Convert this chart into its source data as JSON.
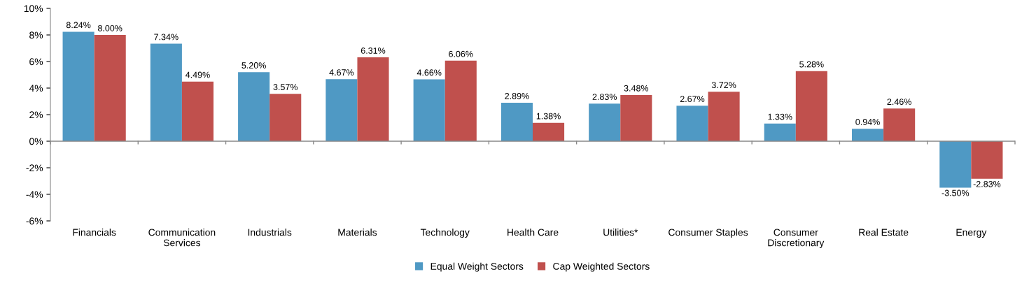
{
  "chart_data": {
    "type": "bar",
    "categories": [
      "Financials",
      "Communication Services",
      "Industrials",
      "Materials",
      "Technology",
      "Health Care",
      "Utilities*",
      "Consumer Staples",
      "Consumer Discretionary",
      "Real Estate",
      "Energy"
    ],
    "series": [
      {
        "name": "Equal Weight Sectors",
        "color": "#4f99c4",
        "values": [
          8.24,
          7.34,
          5.2,
          4.67,
          4.66,
          2.89,
          2.83,
          2.67,
          1.33,
          0.94,
          -3.5
        ],
        "value_labels": [
          "8.24%",
          "7.34%",
          "5.20%",
          "4.67%",
          "4.66%",
          "2.89%",
          "2.83%",
          "2.67%",
          "1.33%",
          "0.94%",
          "-3.50%"
        ]
      },
      {
        "name": "Cap Weighted Sectors",
        "color": "#c0504d",
        "values": [
          8.0,
          4.49,
          3.57,
          6.31,
          6.06,
          1.38,
          3.48,
          3.72,
          5.28,
          2.46,
          -2.83
        ],
        "value_labels": [
          "8.00%",
          "4.49%",
          "3.57%",
          "6.31%",
          "6.06%",
          "1.38%",
          "3.48%",
          "3.72%",
          "5.28%",
          "2.46%",
          "-2.83%"
        ]
      }
    ],
    "ylim": [
      -6,
      10
    ],
    "yticks": [
      {
        "value": -6,
        "label": "-6%"
      },
      {
        "value": -4,
        "label": "-4%"
      },
      {
        "value": -2,
        "label": "-2%"
      },
      {
        "value": 0,
        "label": "0%"
      },
      {
        "value": 2,
        "label": "2%"
      },
      {
        "value": 4,
        "label": "4%"
      },
      {
        "value": 6,
        "label": "6%"
      },
      {
        "value": 8,
        "label": "8%"
      },
      {
        "value": 10,
        "label": "10%"
      }
    ],
    "legend": "bottom"
  }
}
